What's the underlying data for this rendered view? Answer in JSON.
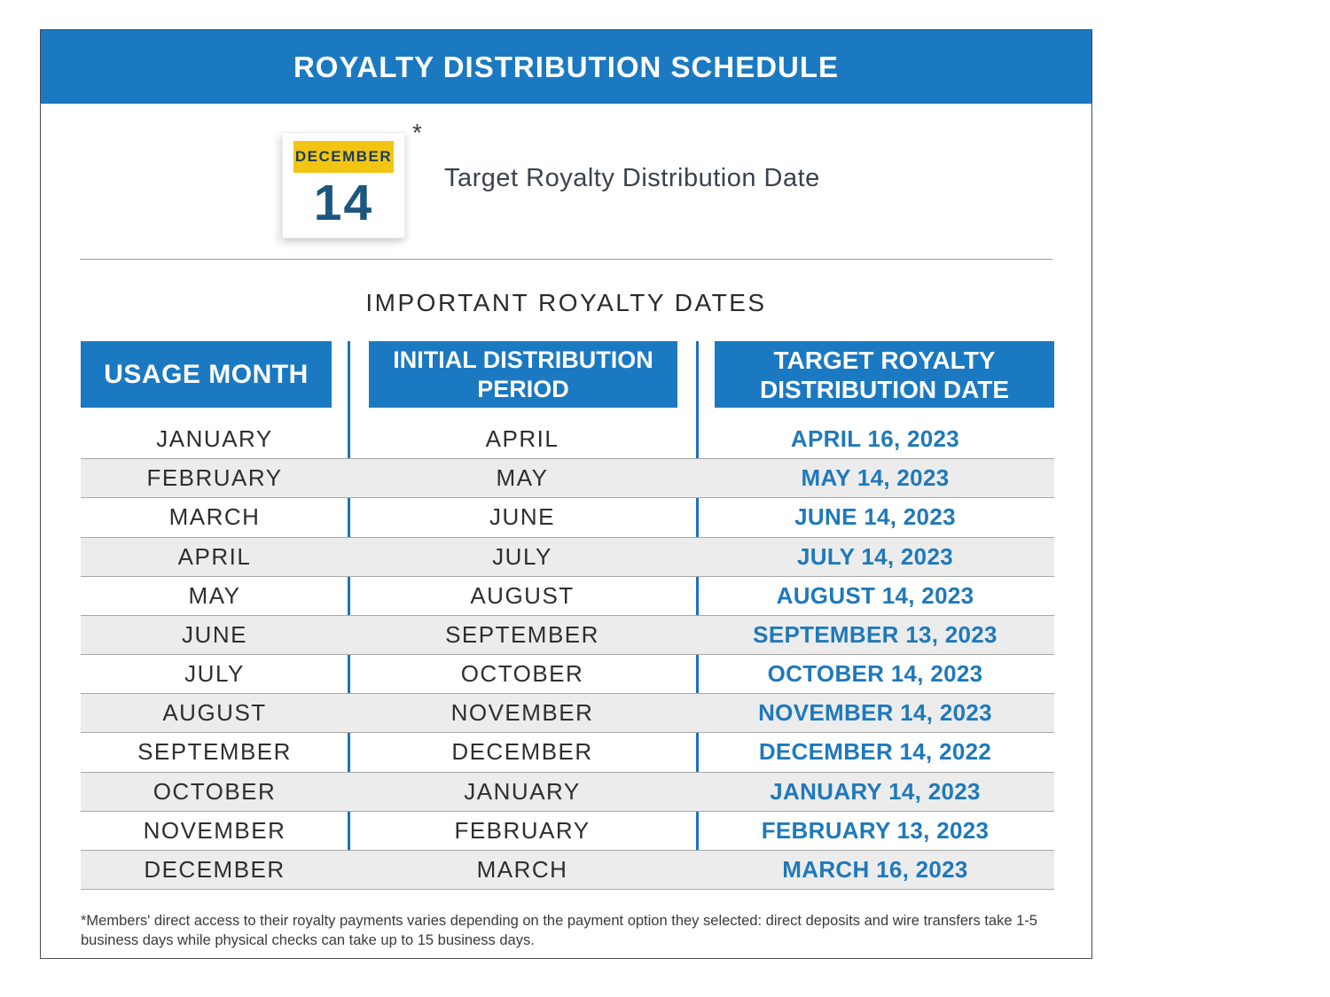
{
  "page": {
    "title": "ROYALTY DISTRIBUTION SCHEDULE"
  },
  "target_date_callout": {
    "calendar_month": "DECEMBER",
    "calendar_day": "14",
    "asterisk": "*",
    "label": "Target Royalty Distribution Date"
  },
  "section_heading": "IMPORTANT ROYALTY DATES",
  "table": {
    "columns": [
      "USAGE MONTH",
      "INITIAL DISTRIBUTION PERIOD",
      "TARGET ROYALTY DISTRIBUTION DATE"
    ],
    "rows": [
      {
        "usage_month": "JANUARY",
        "initial_period": "APRIL",
        "target_date": "APRIL 16, 2023"
      },
      {
        "usage_month": "FEBRUARY",
        "initial_period": "MAY",
        "target_date": "MAY 14, 2023"
      },
      {
        "usage_month": "MARCH",
        "initial_period": "JUNE",
        "target_date": "JUNE 14, 2023"
      },
      {
        "usage_month": "APRIL",
        "initial_period": "JULY",
        "target_date": "JULY 14, 2023"
      },
      {
        "usage_month": "MAY",
        "initial_period": "AUGUST",
        "target_date": "AUGUST 14, 2023"
      },
      {
        "usage_month": "JUNE",
        "initial_period": "SEPTEMBER",
        "target_date": "SEPTEMBER 13, 2023"
      },
      {
        "usage_month": "JULY",
        "initial_period": "OCTOBER",
        "target_date": "OCTOBER 14, 2023"
      },
      {
        "usage_month": "AUGUST",
        "initial_period": "NOVEMBER",
        "target_date": "NOVEMBER 14, 2023"
      },
      {
        "usage_month": "SEPTEMBER",
        "initial_period": "DECEMBER",
        "target_date": "DECEMBER 14, 2022"
      },
      {
        "usage_month": "OCTOBER",
        "initial_period": "JANUARY",
        "target_date": "JANUARY 14, 2023"
      },
      {
        "usage_month": "NOVEMBER",
        "initial_period": "FEBRUARY",
        "target_date": "FEBRUARY 13, 2023"
      },
      {
        "usage_month": "DECEMBER",
        "initial_period": "MARCH",
        "target_date": "MARCH 16, 2023"
      }
    ]
  },
  "footnote": "*Members' direct access to their royalty payments varies depending on the payment option they selected: direct deposits and wire transfers take 1-5 business days while physical checks can take up to 15 business days.",
  "colors": {
    "primary_blue": "#1b79c1",
    "date_blue": "#1f79bb",
    "calendar_yellow": "#f2c513",
    "calendar_navy": "#1d567e",
    "banner_text_navy": "#1e3d53",
    "row_alt_gray": "#ececec",
    "row_line_gray": "#a8a8a8"
  }
}
